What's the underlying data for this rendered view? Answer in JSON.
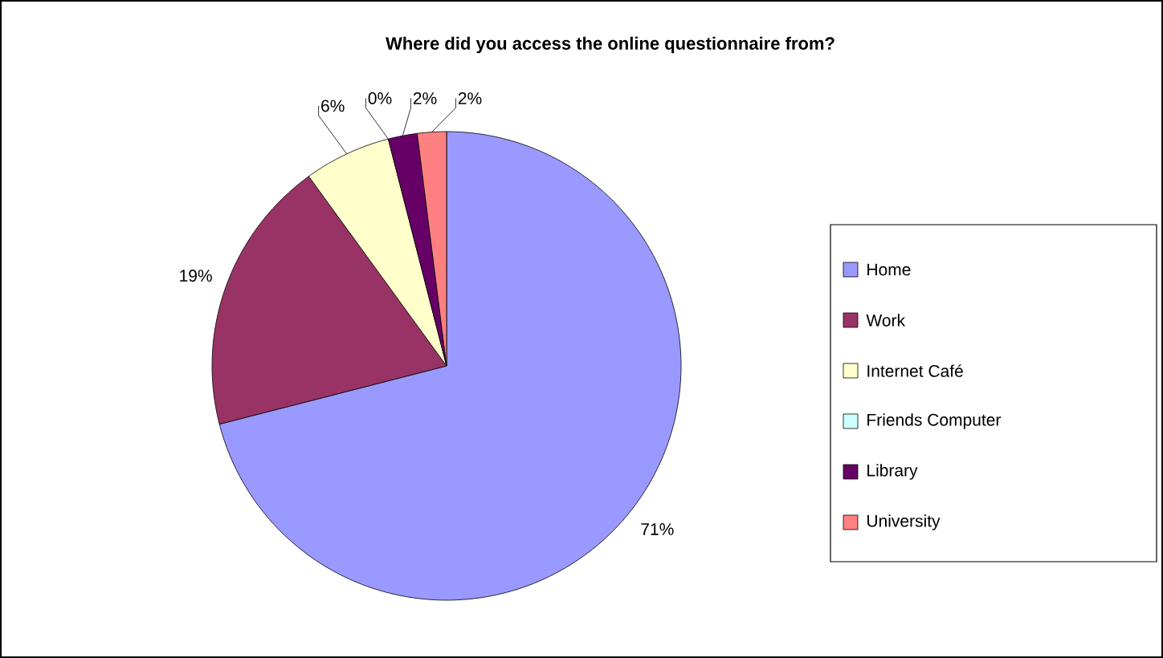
{
  "chart_data": {
    "type": "pie",
    "title": "Where did you access the online questionnaire from?",
    "categories": [
      "Home",
      "Work",
      "Internet Café",
      "Friends Computer",
      "Library",
      "University"
    ],
    "values": [
      71,
      19,
      6,
      0,
      2,
      2
    ],
    "colors": [
      "#9999ff",
      "#993366",
      "#ffffcc",
      "#ccffff",
      "#660066",
      "#ff8080"
    ],
    "value_labels": [
      "71%",
      "19%",
      "6%",
      "0%",
      "2%",
      "2%"
    ],
    "legend": "right"
  }
}
